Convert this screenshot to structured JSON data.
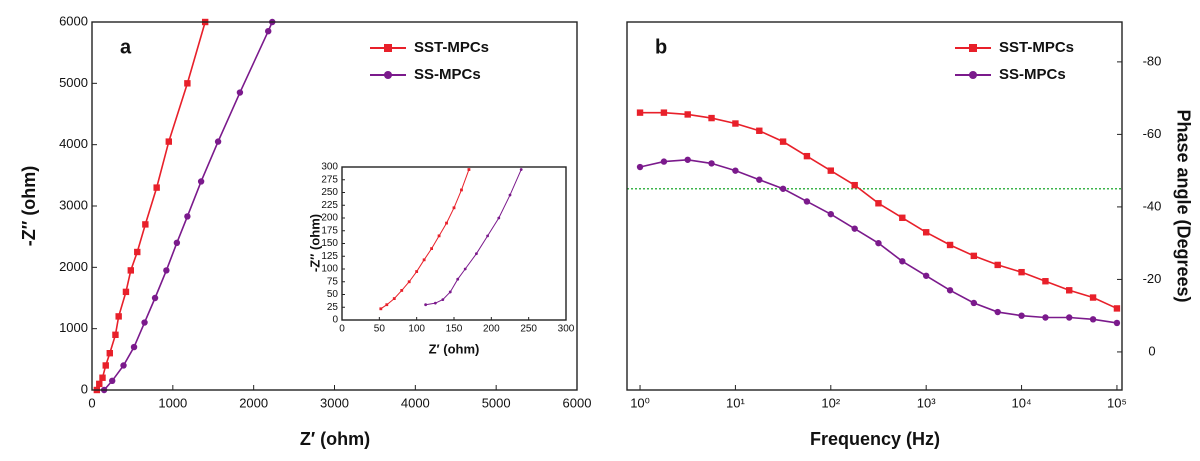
{
  "chart_data": [
    {
      "type": "line",
      "panel_label": "a",
      "xlabel": "Z′ (ohm)",
      "ylabel": "-Z″ (ohm)",
      "xlim": [
        0,
        6000
      ],
      "ylim": [
        0,
        6000
      ],
      "xticks": [
        0,
        1000,
        2000,
        3000,
        4000,
        5000,
        6000
      ],
      "yticks": [
        0,
        1000,
        2000,
        3000,
        4000,
        5000,
        6000
      ],
      "legend": "upper right",
      "series": [
        {
          "name": "SST-MPCs",
          "color": "#e8202a",
          "marker": "square",
          "x": [
            60,
            90,
            130,
            170,
            220,
            290,
            330,
            420,
            480,
            560,
            660,
            800,
            950,
            1180,
            1400
          ],
          "values": [
            0,
            100,
            200,
            400,
            600,
            900,
            1200,
            1600,
            1950,
            2250,
            2700,
            3300,
            4050,
            5000,
            6000
          ]
        },
        {
          "name": "SS-MPCs",
          "color": "#7b1a8c",
          "marker": "circle",
          "x": [
            150,
            250,
            390,
            520,
            650,
            780,
            920,
            1050,
            1180,
            1350,
            1560,
            1830,
            2180,
            2230
          ],
          "values": [
            0,
            150,
            400,
            700,
            1100,
            1500,
            1950,
            2400,
            2830,
            3400,
            4050,
            4850,
            5850,
            6000
          ]
        }
      ]
    },
    {
      "type": "line",
      "xlabel": "Z′ (ohm)",
      "ylabel": "-Z″ (ohm)",
      "xlim": [
        0,
        300
      ],
      "ylim": [
        0,
        300
      ],
      "xticks": [
        0,
        50,
        100,
        150,
        200,
        250,
        300
      ],
      "yticks": [
        0,
        25,
        50,
        75,
        100,
        125,
        150,
        175,
        200,
        225,
        250,
        275,
        300
      ],
      "series": [
        {
          "name": "SST-MPCs",
          "color": "#e8202a",
          "marker": "square",
          "x": [
            52,
            60,
            70,
            80,
            90,
            100,
            110,
            120,
            130,
            140,
            150,
            160,
            170
          ],
          "values": [
            22,
            30,
            42,
            58,
            75,
            95,
            118,
            140,
            165,
            190,
            220,
            255,
            295
          ]
        },
        {
          "name": "SS-MPCs",
          "color": "#7b1a8c",
          "marker": "circle",
          "x": [
            112,
            125,
            135,
            145,
            155,
            165,
            180,
            195,
            210,
            225,
            240
          ],
          "values": [
            30,
            33,
            40,
            55,
            80,
            100,
            130,
            165,
            200,
            245,
            295
          ]
        }
      ]
    },
    {
      "type": "line",
      "panel_label": "b",
      "xlabel": "Frequency (Hz)",
      "y2label": "Phase angle (Degrees)",
      "xscale": "log",
      "xlim": [
        0.73,
        113000
      ],
      "xticks": [
        {
          "value": 1,
          "label": "10⁰"
        },
        {
          "value": 10,
          "label": "10¹"
        },
        {
          "value": 100,
          "label": "10²"
        },
        {
          "value": 1000,
          "label": "10³"
        },
        {
          "value": 10000,
          "label": "10⁴"
        },
        {
          "value": 100000,
          "label": "10⁵"
        }
      ],
      "y2lim": [
        10.5,
        -91
      ],
      "y2ticks": [
        -80,
        -60,
        -40,
        -20,
        0
      ],
      "legend": "upper right",
      "reference_line": {
        "value": -45,
        "color": "#3cb44b",
        "axis": "y2"
      },
      "series": [
        {
          "name": "SST-MPCs",
          "color": "#e8202a",
          "marker": "square",
          "axis": "y2",
          "x": [
            1,
            1.78,
            3.16,
            5.62,
            10,
            17.8,
            31.6,
            56.2,
            100,
            178,
            316,
            562,
            1000,
            1780,
            3160,
            5620,
            10000,
            17800,
            31600,
            56200,
            100000
          ],
          "values": [
            -66,
            -66,
            -65.5,
            -64.5,
            -63,
            -61,
            -58,
            -54,
            -50,
            -46,
            -41,
            -37,
            -33,
            -29.5,
            -26.5,
            -24,
            -22,
            -19.5,
            -17,
            -15,
            -12
          ]
        },
        {
          "name": "SS-MPCs",
          "color": "#7b1a8c",
          "marker": "circle",
          "axis": "y2",
          "x": [
            1,
            1.78,
            3.16,
            5.62,
            10,
            17.8,
            31.6,
            56.2,
            100,
            178,
            316,
            562,
            1000,
            1780,
            3160,
            5620,
            10000,
            17800,
            31600,
            56200,
            100000
          ],
          "values": [
            -51,
            -52.5,
            -53,
            -52,
            -50,
            -47.5,
            -45,
            -41.5,
            -38,
            -34,
            -30,
            -25,
            -21,
            -17,
            -13.5,
            -11,
            -10,
            -9.5,
            -9.5,
            -9,
            -8
          ]
        }
      ]
    }
  ]
}
